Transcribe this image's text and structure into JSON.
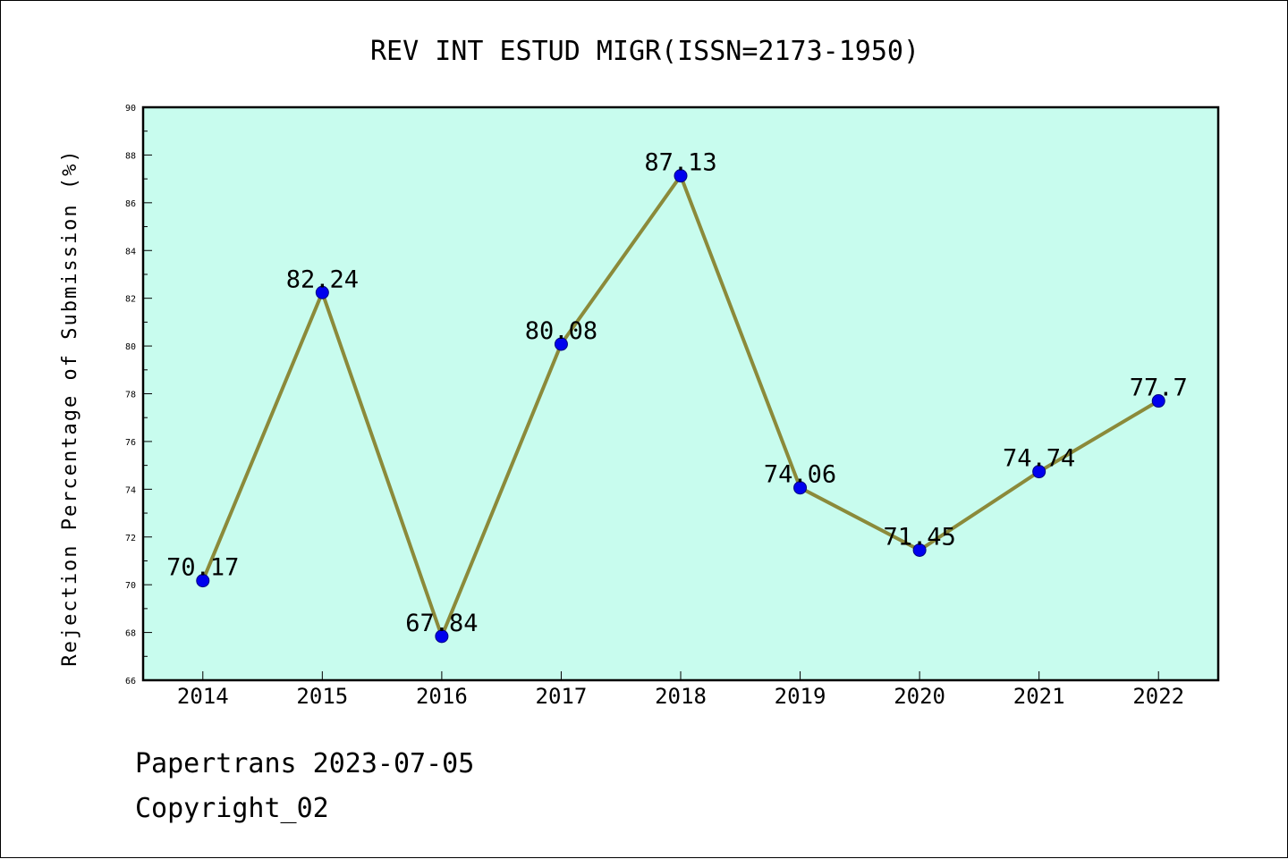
{
  "chart_data": {
    "type": "line",
    "title": "REV INT ESTUD MIGR(ISSN=2173-1950)",
    "xlabel": "",
    "ylabel": "Rejection Percentage of Submission (%)",
    "categories": [
      "2014",
      "2015",
      "2016",
      "2017",
      "2018",
      "2019",
      "2020",
      "2021",
      "2022"
    ],
    "series": [
      {
        "values": [
          70.17,
          82.24,
          67.84,
          80.08,
          87.13,
          74.06,
          71.45,
          74.74,
          77.7
        ],
        "labels": [
          "70.17",
          "82.24",
          "67.84",
          "80.08",
          "87.13",
          "74.06",
          "71.45",
          "74.74",
          "77.7"
        ]
      }
    ],
    "ylim": [
      66,
      90
    ],
    "yticks": [
      "66",
      "68",
      "70",
      "72",
      "74",
      "76",
      "78",
      "80",
      "82",
      "84",
      "86",
      "88",
      "90"
    ],
    "grid": false,
    "legend": "none",
    "colors": {
      "plot_background": "#c8fcee",
      "line": "#8b8a3a",
      "marker": "#0000ee",
      "marker_edge": "#000080"
    }
  },
  "footer": {
    "date_line": "Papertrans 2023-07-05",
    "copyright_line": "Copyright_02"
  }
}
